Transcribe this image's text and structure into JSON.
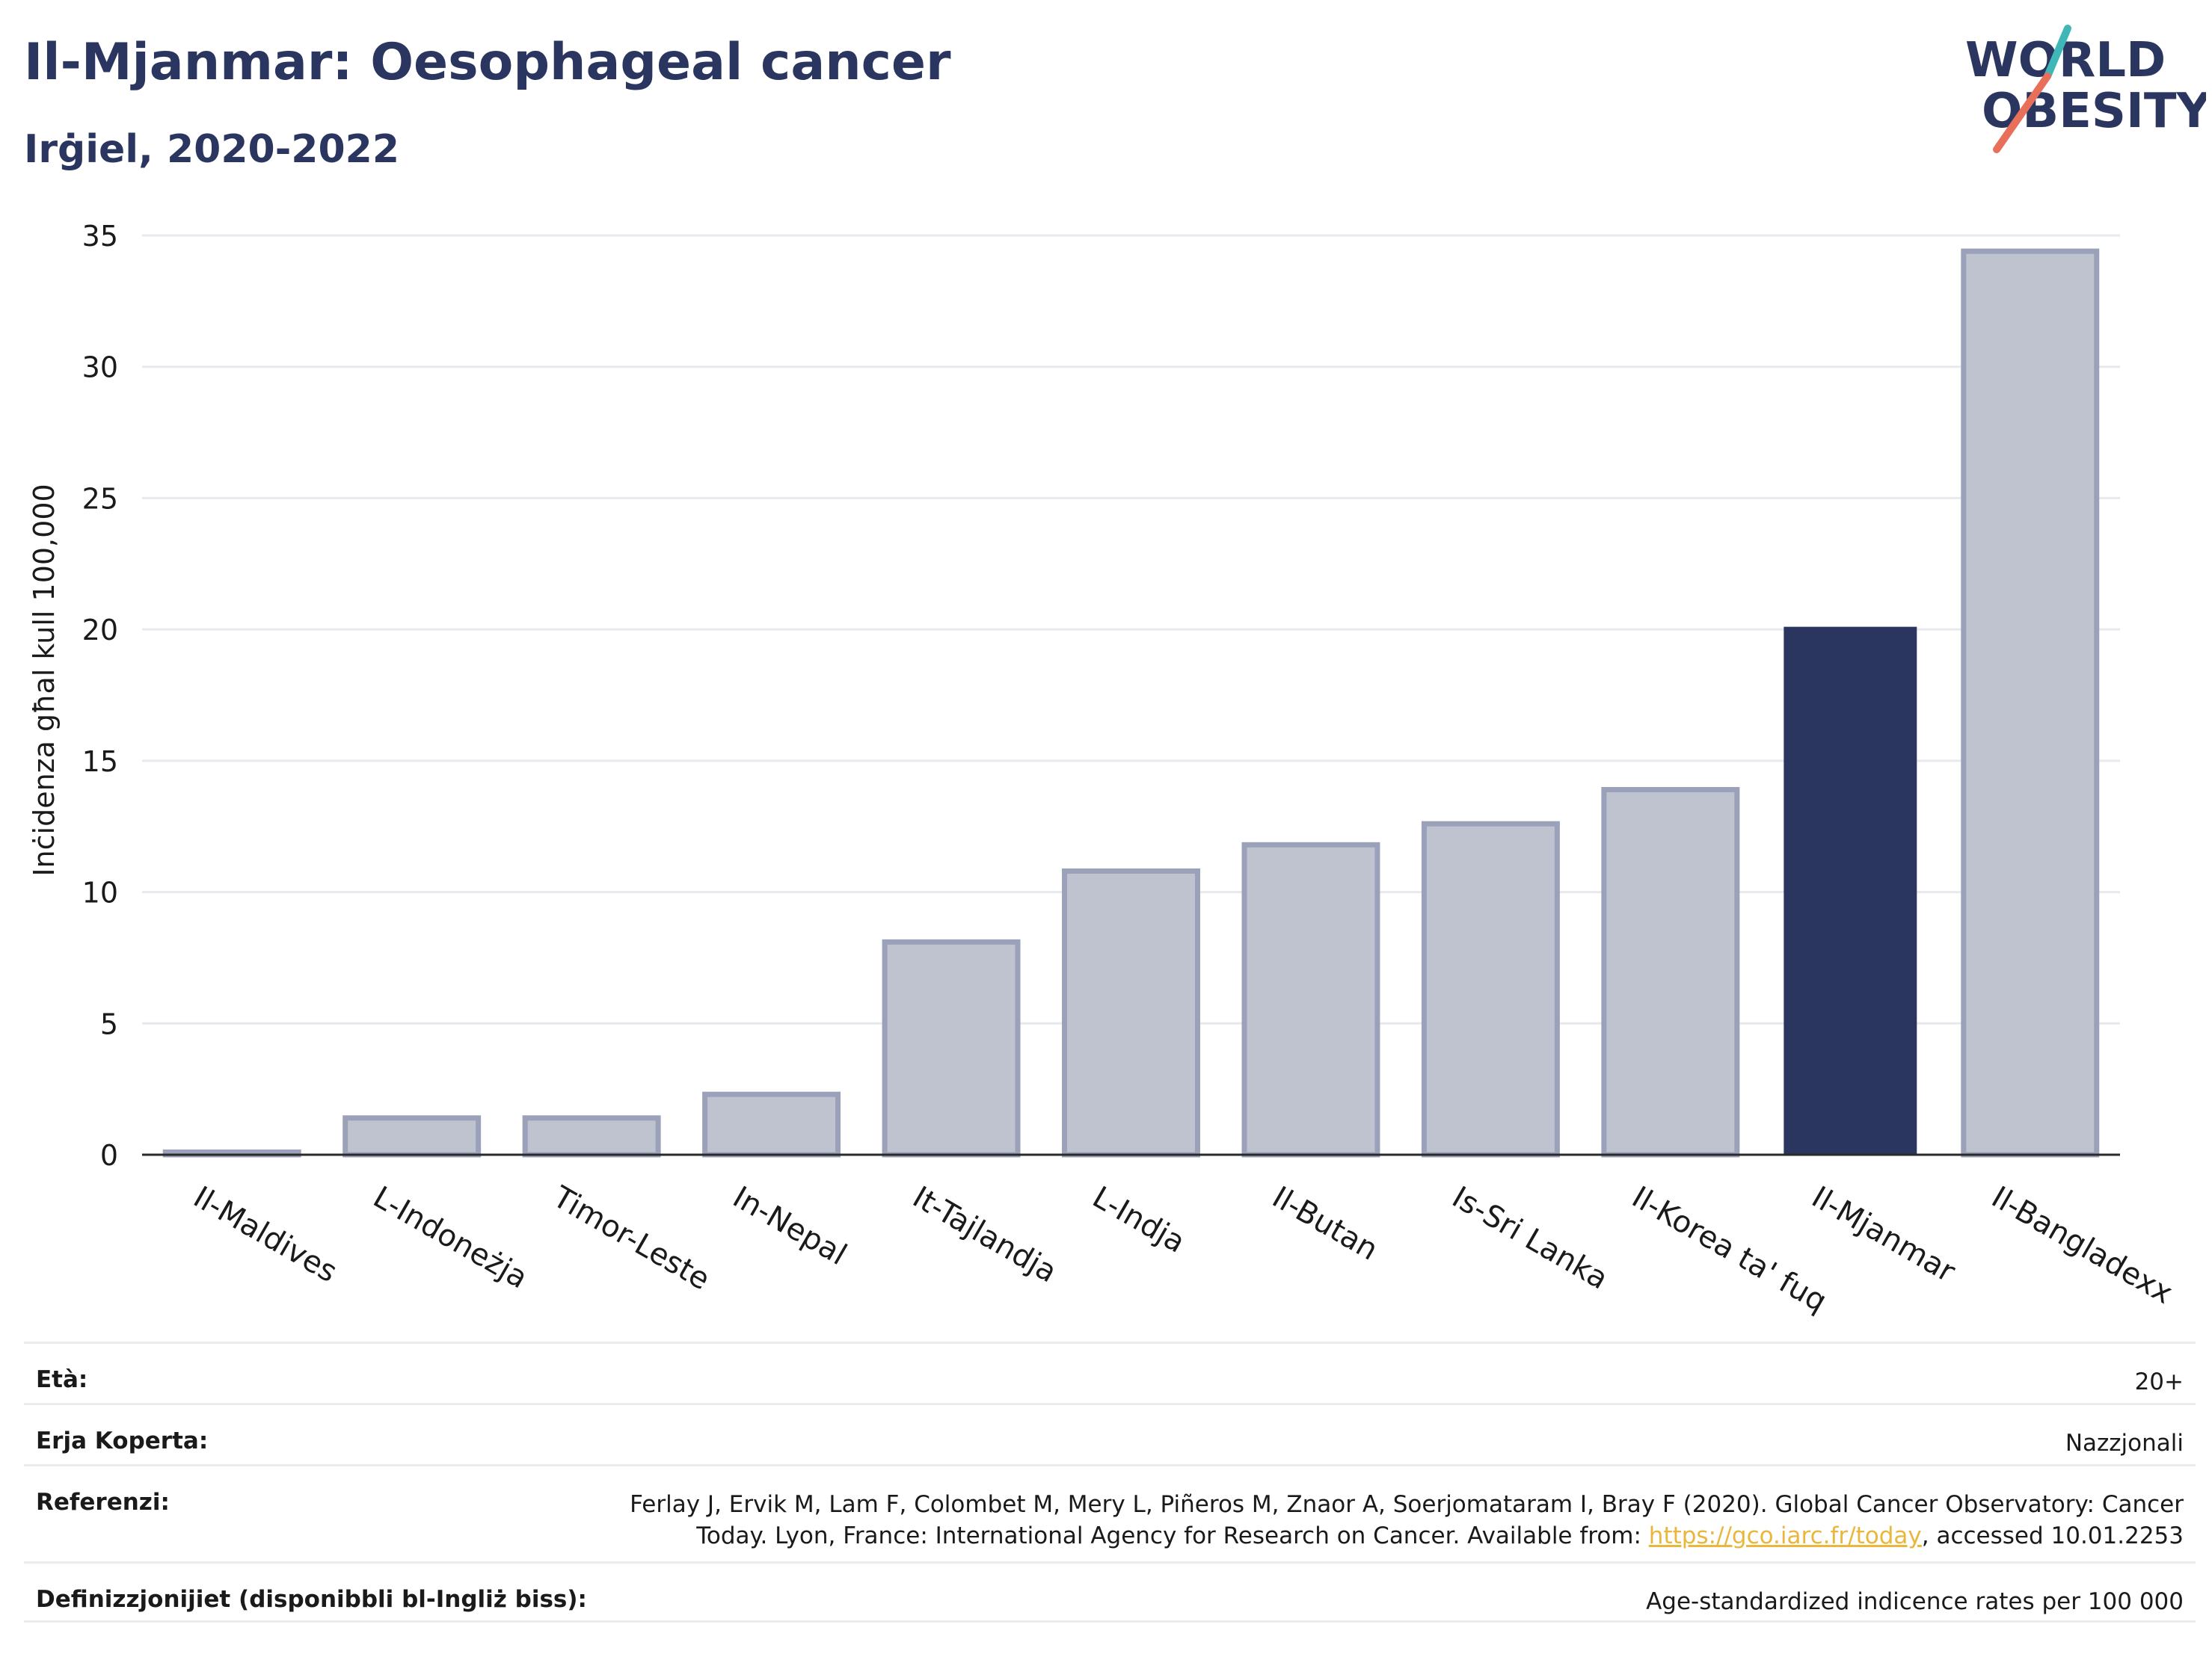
{
  "header": {
    "title": "Il-Mjanmar: Oesophageal cancer",
    "subtitle": "Irġiel, 2020-2022"
  },
  "logo": {
    "line1": "WORLD",
    "line2": "OBESITY",
    "accent_teal": "#3fb7b8",
    "accent_red": "#e8705a"
  },
  "colors": {
    "highlight": "#2a365f",
    "other_fill": "#bfc3d0",
    "other_stroke": "#9aa1b8",
    "text": "#2a365f"
  },
  "chart_data": {
    "type": "bar",
    "ylabel": "Inċidenza għal kull 100,000",
    "ylim": [
      0,
      35
    ],
    "yticks": [
      0,
      5,
      10,
      15,
      20,
      25,
      30,
      35
    ],
    "grid": true,
    "categories": [
      "Il-Maldives",
      "L-Indoneżja",
      "Timor-Leste",
      "In-Nepal",
      "It-Tajlandja",
      "L-Indja",
      "Il-Butan",
      "Is-Sri Lanka",
      "Il-Korea ta' fuq",
      "Il-Mjanmar",
      "Il-Bangladexx"
    ],
    "values": [
      0.1,
      1.4,
      1.4,
      2.3,
      8.1,
      10.8,
      11.8,
      12.6,
      13.9,
      20.1,
      34.4
    ],
    "highlight": "Il-Mjanmar"
  },
  "info": {
    "age_label": "Età:",
    "age_value": "20+",
    "area_label": "Erja Koperta:",
    "area_value": "Nazzjonali",
    "ref_label": "Referenzi:",
    "ref_line1": "Ferlay J, Ervik M, Lam F, Colombet M, Mery L, Piñeros M, Znaor A, Soerjomataram I, Bray F (2020). Global Cancer Observatory: Cancer",
    "ref_line2_pre": "Today. Lyon, France: International Agency for Research on Cancer. Available from: ",
    "ref_link": "https://gco.iarc.fr/today",
    "ref_line2_post": ", accessed 10.01.2253",
    "def_label": "Definizzjonijiet (disponibbli bl-Ingliż biss):",
    "def_value": "Age-standardized indicence rates per 100 000"
  }
}
